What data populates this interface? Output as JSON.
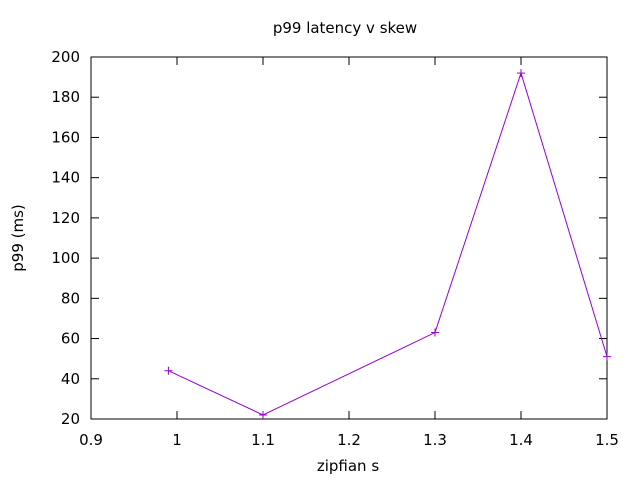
{
  "chart_data": {
    "type": "line",
    "title": "p99 latency v skew",
    "xlabel": "zipfian s",
    "ylabel": "p99 (ms)",
    "xlim": [
      0.9,
      1.5
    ],
    "ylim": [
      20,
      200
    ],
    "x_ticks": [
      0.9,
      1,
      1.1,
      1.2,
      1.3,
      1.4,
      1.5
    ],
    "y_ticks": [
      20,
      40,
      60,
      80,
      100,
      120,
      140,
      160,
      180,
      200
    ],
    "x_tick_labels": [
      "0.9",
      "1",
      "1.1",
      "1.2",
      "1.3",
      "1.4",
      "1.5"
    ],
    "y_tick_labels": [
      "20",
      "40",
      "60",
      "80",
      "100",
      "120",
      "140",
      "160",
      "180",
      "200"
    ],
    "grid": false,
    "legend": "none",
    "series": [
      {
        "color": "#9400d3",
        "marker": "plus",
        "x": [
          0.99,
          1.1,
          1.3,
          1.4,
          1.5
        ],
        "y": [
          44,
          22,
          63,
          192,
          51
        ]
      }
    ]
  }
}
